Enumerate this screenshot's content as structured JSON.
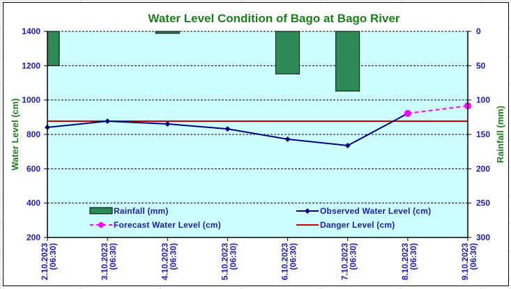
{
  "chart_data": {
    "type": "line",
    "title": "Water Level Condition of Bago at Bago River",
    "ylabel": "Water Level (cm)",
    "y2label": "Rainfall (mm)",
    "ylim": [
      200,
      1400
    ],
    "yticks": [
      200,
      400,
      600,
      800,
      1000,
      1200,
      1400
    ],
    "y2lim": [
      0,
      300
    ],
    "y2ticks": [
      0,
      50,
      100,
      150,
      200,
      250,
      300
    ],
    "y2_reversed": true,
    "grid": true,
    "categories": [
      [
        "2.10.2023",
        "(06:30)"
      ],
      [
        "3.10.2023",
        "(06:30)"
      ],
      [
        "4.10.2023",
        "(06:30)"
      ],
      [
        "5.10.2023",
        "(06:30)"
      ],
      [
        "6.10.2023",
        "(06:30)"
      ],
      [
        "7.10.2023",
        "(06:30)"
      ],
      [
        "8.10.2023",
        "(06:30)"
      ],
      [
        "9.10.2023",
        "(06:30)"
      ]
    ],
    "series": [
      {
        "name": "Rainfall (mm)",
        "type": "bar",
        "axis": "right",
        "color": "#2e8b57",
        "values": [
          50,
          0,
          3,
          0,
          62,
          87,
          0,
          0
        ]
      },
      {
        "name": "Observed Water Level (cm)",
        "type": "line",
        "axis": "left",
        "color": "#000080",
        "values": [
          841,
          877,
          861,
          832,
          772,
          735,
          922,
          null
        ]
      },
      {
        "name": "Forecast Water Level (cm)",
        "type": "line-dashed",
        "axis": "left",
        "color": "#ff00ff",
        "values": [
          null,
          null,
          null,
          null,
          null,
          null,
          922,
          966
        ]
      },
      {
        "name": "Danger Level (cm)",
        "type": "hline",
        "axis": "left",
        "color": "#c00000",
        "value": 877
      }
    ],
    "legend": {
      "position": "bottom-inside",
      "items": [
        "Rainfall (mm)",
        "Observed Water Level (cm)",
        "Forecast Water Level (cm)",
        "Danger Level (cm)"
      ]
    },
    "plot_background": "#ccffff"
  }
}
